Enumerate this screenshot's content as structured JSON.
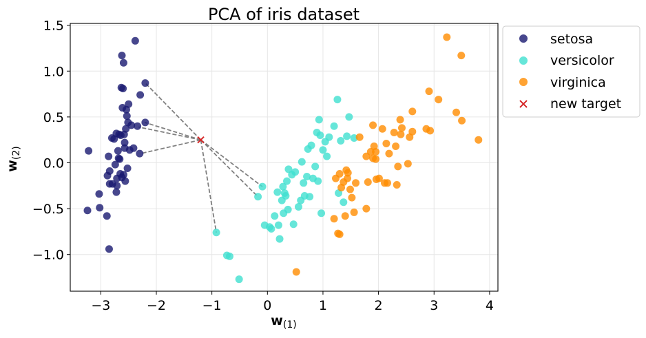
{
  "chart_data": {
    "type": "scatter",
    "title": "PCA of iris dataset",
    "xlabel": "w",
    "xlabel_sub": "(1)",
    "ylabel": "w",
    "ylabel_sub": "(2)",
    "xlim": [
      -3.55,
      4.15
    ],
    "ylim": [
      -1.4,
      1.52
    ],
    "xticks": [
      -3,
      -2,
      -1,
      0,
      1,
      2,
      3,
      4
    ],
    "xtick_labels": [
      "−3",
      "−2",
      "−1",
      "0",
      "1",
      "2",
      "3",
      "4"
    ],
    "yticks": [
      -1.0,
      -0.5,
      0.0,
      0.5,
      1.0,
      1.5
    ],
    "ytick_labels": [
      "−1.0",
      "−0.5",
      "0.0",
      "0.5",
      "1.0",
      "1.5"
    ],
    "grid": true,
    "legend_position": "outside-top-right",
    "series": [
      {
        "name": "setosa",
        "color": "#191970",
        "marker": "circle",
        "points": [
          [
            -3.22,
            0.13
          ],
          [
            -3.24,
            -0.52
          ],
          [
            -3.03,
            -0.34
          ],
          [
            -3.02,
            -0.49
          ],
          [
            -2.89,
            -0.58
          ],
          [
            -2.85,
            -0.94
          ],
          [
            -2.86,
            0.07
          ],
          [
            -2.88,
            -0.14
          ],
          [
            -2.84,
            -0.23
          ],
          [
            -2.84,
            -0.09
          ],
          [
            -2.79,
            -0.23
          ],
          [
            -2.8,
            0.27
          ],
          [
            -2.76,
            0.26
          ],
          [
            -2.74,
            -0.02
          ],
          [
            -2.72,
            0.32
          ],
          [
            -2.71,
            -0.17
          ],
          [
            -2.72,
            -0.32
          ],
          [
            -2.71,
            -0.25
          ],
          [
            -2.69,
            0.13
          ],
          [
            -2.67,
            0.31
          ],
          [
            -2.66,
            0.04
          ],
          [
            -2.65,
            -0.12
          ],
          [
            -2.64,
            0.3
          ],
          [
            -2.63,
            0.82
          ],
          [
            -2.62,
            1.17
          ],
          [
            -2.61,
            0.6
          ],
          [
            -2.6,
            0.81
          ],
          [
            -2.59,
            1.09
          ],
          [
            -2.59,
            -0.13
          ],
          [
            -2.58,
            0.31
          ],
          [
            -2.57,
            0.16
          ],
          [
            -2.57,
            0.22
          ],
          [
            -2.56,
            -0.2
          ],
          [
            -2.55,
            0.37
          ],
          [
            -2.54,
            0.58
          ],
          [
            -2.53,
            0.51
          ],
          [
            -2.52,
            -0.06
          ],
          [
            -2.51,
            0.44
          ],
          [
            -2.5,
            0.64
          ],
          [
            -2.48,
            0.14
          ],
          [
            -2.45,
            0.41
          ],
          [
            -2.41,
            0.16
          ],
          [
            -2.38,
            1.33
          ],
          [
            -2.34,
            0.4
          ],
          [
            -2.3,
            0.1
          ],
          [
            -2.29,
            0.74
          ],
          [
            -2.2,
            0.87
          ],
          [
            -2.2,
            0.44
          ],
          [
            -2.68,
            0.05
          ],
          [
            -2.62,
            -0.16
          ]
        ]
      },
      {
        "name": "versicolor",
        "color": "#40e0d0",
        "marker": "circle",
        "points": [
          [
            -0.92,
            -0.76
          ],
          [
            -0.73,
            -1.01
          ],
          [
            -0.68,
            -1.02
          ],
          [
            -0.51,
            -1.27
          ],
          [
            -0.17,
            -0.37
          ],
          [
            -0.09,
            -0.26
          ],
          [
            -0.05,
            -0.68
          ],
          [
            0.04,
            -0.7
          ],
          [
            0.07,
            -0.72
          ],
          [
            0.13,
            -0.58
          ],
          [
            0.18,
            -0.32
          ],
          [
            0.2,
            -0.68
          ],
          [
            0.22,
            -0.83
          ],
          [
            0.26,
            -0.41
          ],
          [
            0.28,
            -0.26
          ],
          [
            0.29,
            -0.55
          ],
          [
            0.31,
            -0.33
          ],
          [
            0.33,
            -0.36
          ],
          [
            0.35,
            -0.2
          ],
          [
            0.37,
            -0.51
          ],
          [
            0.38,
            -0.07
          ],
          [
            0.44,
            -0.13
          ],
          [
            0.47,
            -0.67
          ],
          [
            0.5,
            -0.1
          ],
          [
            0.56,
            -0.48
          ],
          [
            0.6,
            -0.41
          ],
          [
            0.62,
            0.01
          ],
          [
            0.65,
            -0.22
          ],
          [
            0.67,
            -0.36
          ],
          [
            0.71,
            -0.15
          ],
          [
            0.73,
            0.15
          ],
          [
            0.76,
            -0.37
          ],
          [
            0.79,
            0.19
          ],
          [
            0.82,
            -0.17
          ],
          [
            0.86,
            -0.04
          ],
          [
            0.89,
            0.33
          ],
          [
            0.91,
            -0.2
          ],
          [
            0.93,
            0.47
          ],
          [
            0.95,
            0.3
          ],
          [
            0.97,
            -0.55
          ],
          [
            1.0,
            0.14
          ],
          [
            1.04,
            0.23
          ],
          [
            1.07,
            0.07
          ],
          [
            1.11,
            0.28
          ],
          [
            1.2,
            0.4
          ],
          [
            1.26,
            0.69
          ],
          [
            1.28,
            -0.33
          ],
          [
            1.32,
            0.24
          ],
          [
            1.37,
            -0.43
          ],
          [
            1.43,
            0.29
          ],
          [
            1.47,
            0.5
          ],
          [
            1.56,
            0.27
          ]
        ]
      },
      {
        "name": "virginica",
        "color": "#ff8c00",
        "marker": "circle",
        "points": [
          [
            0.52,
            -1.19
          ],
          [
            1.2,
            -0.61
          ],
          [
            1.23,
            -0.17
          ],
          [
            1.27,
            -0.77
          ],
          [
            1.3,
            -0.78
          ],
          [
            1.3,
            -0.12
          ],
          [
            1.33,
            -0.27
          ],
          [
            1.37,
            -0.21
          ],
          [
            1.4,
            -0.58
          ],
          [
            1.42,
            -0.08
          ],
          [
            1.44,
            -0.17
          ],
          [
            1.45,
            -0.11
          ],
          [
            1.49,
            -0.29
          ],
          [
            1.52,
            -0.38
          ],
          [
            1.56,
            -0.54
          ],
          [
            1.59,
            -0.22
          ],
          [
            1.66,
            0.28
          ],
          [
            1.78,
            0.07
          ],
          [
            1.78,
            -0.5
          ],
          [
            1.81,
            -0.21
          ],
          [
            1.86,
            0.12
          ],
          [
            1.9,
            0.41
          ],
          [
            1.9,
            0.05
          ],
          [
            1.92,
            0.18
          ],
          [
            1.95,
            0.04
          ],
          [
            1.95,
            0.12
          ],
          [
            1.96,
            -0.18
          ],
          [
            2.01,
            -0.17
          ],
          [
            2.07,
            0.37
          ],
          [
            2.11,
            -0.22
          ],
          [
            2.14,
            0.21
          ],
          [
            2.16,
            -0.22
          ],
          [
            2.19,
            0.1
          ],
          [
            2.28,
            0.33
          ],
          [
            2.31,
            0.18
          ],
          [
            2.33,
            -0.24
          ],
          [
            2.35,
            -0.04
          ],
          [
            2.39,
            0.47
          ],
          [
            2.4,
            0.31
          ],
          [
            2.42,
            0.38
          ],
          [
            2.53,
            -0.01
          ],
          [
            2.56,
            0.28
          ],
          [
            2.61,
            0.56
          ],
          [
            2.61,
            0.34
          ],
          [
            2.86,
            0.37
          ],
          [
            2.91,
            0.78
          ],
          [
            2.93,
            0.35
          ],
          [
            3.08,
            0.69
          ],
          [
            3.23,
            1.37
          ],
          [
            3.4,
            0.55
          ],
          [
            3.49,
            1.17
          ],
          [
            3.5,
            0.46
          ],
          [
            3.8,
            0.25
          ]
        ]
      },
      {
        "name": "new target",
        "color": "#d62728",
        "marker": "x",
        "points": [
          [
            -1.2,
            0.25
          ]
        ]
      }
    ],
    "neighbor_lines": {
      "color": "#808080",
      "style": "dashed",
      "from": [
        -1.2,
        0.25
      ],
      "to": [
        [
          -2.2,
          0.87
        ],
        [
          -2.32,
          0.39
        ],
        [
          -2.21,
          0.44
        ],
        [
          -2.29,
          0.1
        ],
        [
          -0.92,
          -0.76
        ],
        [
          -0.09,
          -0.26
        ],
        [
          -0.17,
          -0.37
        ]
      ]
    }
  }
}
